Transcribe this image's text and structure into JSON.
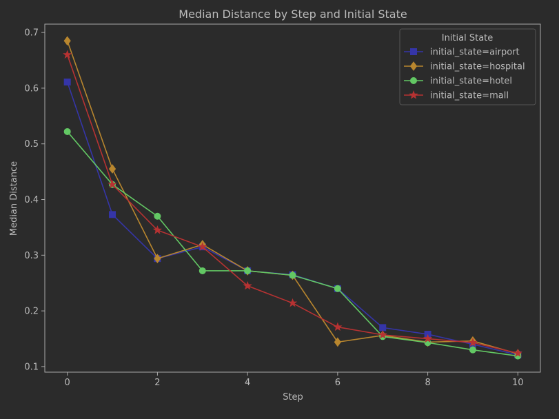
{
  "chart_data": {
    "type": "line",
    "title": "Median Distance by Step and Initial State",
    "xlabel": "Step",
    "ylabel": "Median Distance",
    "xlim": [
      -0.5,
      10.5
    ],
    "ylim": [
      0.09,
      0.715
    ],
    "xticks": [
      0,
      2,
      4,
      6,
      8,
      10
    ],
    "yticks": [
      0.1,
      0.2,
      0.3,
      0.4,
      0.5,
      0.6,
      0.7
    ],
    "grid": false,
    "legend": {
      "title": "Initial State",
      "placement": "top-right"
    },
    "x": [
      0,
      1,
      2,
      3,
      4,
      5,
      6,
      7,
      8,
      9,
      10
    ],
    "series": [
      {
        "name": "initial_state=airport",
        "color": "#3535a8",
        "marker": "square",
        "values": [
          0.611,
          0.373,
          0.294,
          0.315,
          0.272,
          0.265,
          0.24,
          0.17,
          0.158,
          0.14,
          0.121
        ]
      },
      {
        "name": "initial_state=hospital",
        "color": "#b8862e",
        "marker": "diamond",
        "values": [
          0.685,
          0.455,
          0.294,
          0.319,
          0.272,
          0.264,
          0.144,
          0.156,
          0.144,
          0.146,
          0.123
        ]
      },
      {
        "name": "initial_state=hotel",
        "color": "#63c864",
        "marker": "circle",
        "values": [
          0.522,
          0.427,
          0.37,
          0.272,
          0.272,
          0.264,
          0.24,
          0.154,
          0.143,
          0.13,
          0.119
        ]
      },
      {
        "name": "initial_state=mall",
        "color": "#b73232",
        "marker": "star",
        "values": [
          0.66,
          0.427,
          0.345,
          0.315,
          0.245,
          0.214,
          0.171,
          0.157,
          0.15,
          0.143,
          0.124
        ]
      }
    ]
  },
  "colors": {
    "background": "#2b2b2b",
    "axis": "#aaaaaa",
    "text": "#bbbbbb",
    "legend_bg": "#2b2b2b",
    "legend_border": "#555555"
  }
}
